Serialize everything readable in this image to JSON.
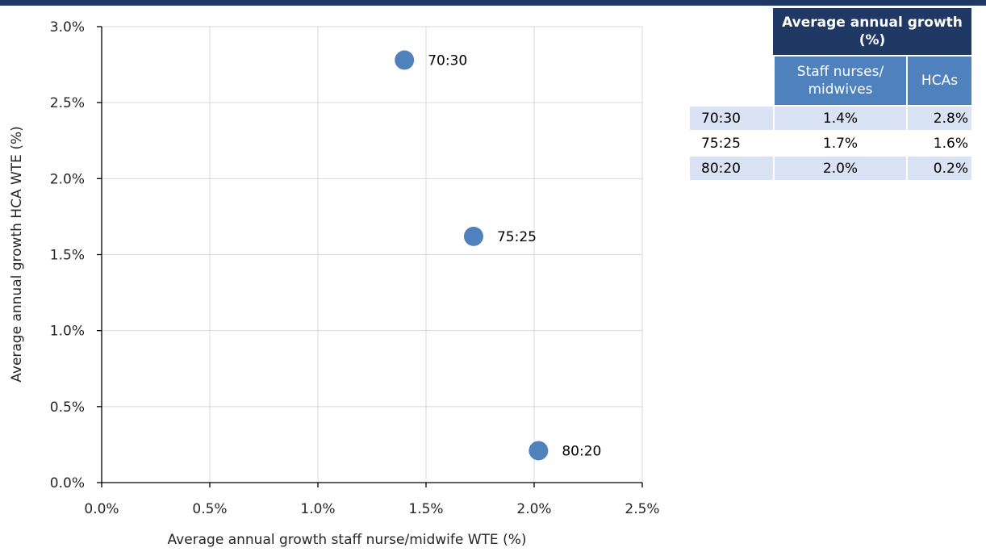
{
  "chart_data": {
    "type": "scatter",
    "xlabel": "Average annual growth staff nurse/midwife WTE (%)",
    "ylabel": "Average annual growth HCA WTE (%)",
    "xlim": [
      0,
      2.5
    ],
    "ylim": [
      0,
      3.0
    ],
    "x_ticks": [
      0,
      0.5,
      1.0,
      1.5,
      2.0,
      2.5
    ],
    "y_ticks": [
      0,
      0.5,
      1.0,
      1.5,
      2.0,
      2.5,
      3.0
    ],
    "x_tick_labels": [
      "0.0%",
      "0.5%",
      "1.0%",
      "1.5%",
      "2.0%",
      "2.5%"
    ],
    "y_tick_labels": [
      "0.0%",
      "0.5%",
      "1.0%",
      "1.5%",
      "2.0%",
      "2.5%",
      "3.0%"
    ],
    "grid": true,
    "marker_color": "#4f81bd",
    "points": [
      {
        "label": "70:30",
        "x": 1.4,
        "y": 2.78
      },
      {
        "label": "75:25",
        "x": 1.72,
        "y": 1.62
      },
      {
        "label": "80:20",
        "x": 2.02,
        "y": 0.21
      }
    ]
  },
  "table": {
    "header": "Average annual growth (%)",
    "col1": "Staff nurses/ midwives",
    "col2": "HCAs",
    "rows": [
      {
        "label": "70:30",
        "staff": "1.4%",
        "hca": "2.8%"
      },
      {
        "label": "75:25",
        "staff": "1.7%",
        "hca": "1.6%"
      },
      {
        "label": "80:20",
        "staff": "2.0%",
        "hca": "0.2%"
      }
    ]
  }
}
